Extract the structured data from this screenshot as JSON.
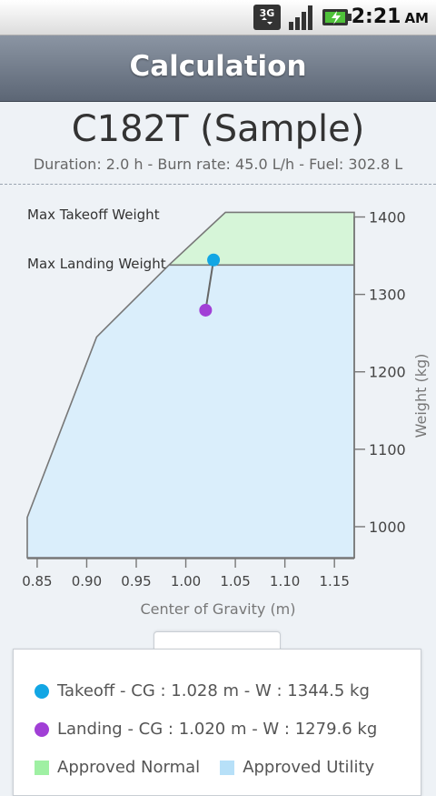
{
  "status_bar": {
    "time": "2:21",
    "ampm": "AM",
    "network_label": "3G"
  },
  "header": {
    "title": "Calculation"
  },
  "aircraft": {
    "name": "C182T (Sample)",
    "summary": "Duration: 2.0 h - Burn rate: 45.0 L/h - Fuel: 302.8 L"
  },
  "chart_data": {
    "type": "line",
    "xlabel": "Center of Gravity (m)",
    "ylabel": "Weight (kg)",
    "xlim": [
      0.84,
      1.17
    ],
    "ylim": [
      960,
      1410
    ],
    "x_ticks": [
      "0.85",
      "0.90",
      "0.95",
      "1.00",
      "1.05",
      "1.10",
      "1.15"
    ],
    "y_ticks": [
      "1000",
      "1100",
      "1200",
      "1300",
      "1400"
    ],
    "max_takeoff_label": "Max Takeoff Weight",
    "max_landing_label": "Max Landing Weight",
    "max_takeoff_weight": 1406,
    "max_landing_weight": 1338,
    "envelope": [
      [
        0.84,
        960
      ],
      [
        0.84,
        1012
      ],
      [
        0.91,
        1245
      ],
      [
        0.983,
        1338
      ],
      [
        1.04,
        1406
      ],
      [
        1.17,
        1406
      ],
      [
        1.17,
        960
      ]
    ],
    "normal_color": "#d6f5d8",
    "utility_color": "#daeefb",
    "takeoff": {
      "cg": 1.028,
      "weight": 1344.5,
      "color": "#12a6e4"
    },
    "landing": {
      "cg": 1.02,
      "weight": 1279.6,
      "color": "#a13fd6"
    }
  },
  "legend": {
    "takeoff": "Takeoff - CG : 1.028 m - W : 1344.5 kg",
    "landing": "Landing - CG : 1.020 m - W : 1279.6 kg",
    "normal": "Approved Normal",
    "utility": "Approved Utility",
    "normal_color": "#9ff0a3",
    "utility_color": "#b7e0f8"
  }
}
